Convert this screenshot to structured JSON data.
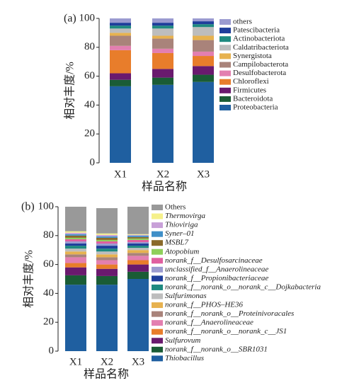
{
  "chart_data": [
    {
      "type": "stacked_bar",
      "panel_label": "(a)",
      "y_label": "相对丰度/%",
      "x_label": "样品名称",
      "categories": [
        "X1",
        "X2",
        "X3"
      ],
      "ylim": [
        0,
        100
      ],
      "yticks": [
        0,
        20,
        40,
        60,
        80,
        100
      ],
      "series": [
        {
          "name": "Proteobacteria",
          "color": "#1f5fa0",
          "values": [
            53,
            54,
            56
          ]
        },
        {
          "name": "Bacteroidota",
          "color": "#1a5c35",
          "values": [
            4.5,
            5,
            5
          ]
        },
        {
          "name": "Firmicutes",
          "color": "#6a1a6e",
          "values": [
            4.5,
            6,
            6
          ]
        },
        {
          "name": "Chloroflexi",
          "color": "#e87d2b",
          "values": [
            16,
            11,
            7
          ]
        },
        {
          "name": "Desulfobacterota",
          "color": "#e37fb0",
          "values": [
            3,
            3,
            3
          ]
        },
        {
          "name": "Campilobacterota",
          "color": "#a9837a",
          "values": [
            7,
            7,
            8
          ]
        },
        {
          "name": "Synergistota",
          "color": "#e7b24f",
          "values": [
            2,
            2,
            3
          ]
        },
        {
          "name": "Caldatribacteriota",
          "color": "#bdbdbd",
          "values": [
            3,
            5,
            6
          ]
        },
        {
          "name": "Actinobacteriota",
          "color": "#1f8a80",
          "values": [
            2,
            2,
            2
          ]
        },
        {
          "name": "Patescibacteria",
          "color": "#1f3e9b",
          "values": [
            2,
            2,
            2
          ]
        },
        {
          "name": "others",
          "color": "#9b9bd0",
          "values": [
            3,
            3,
            2
          ]
        }
      ]
    },
    {
      "type": "stacked_bar",
      "panel_label": "(b)",
      "y_label": "相对丰度/%",
      "x_label": "样品名称",
      "categories": [
        "X1",
        "X2",
        "X3"
      ],
      "ylim": [
        0,
        100
      ],
      "yticks": [
        0,
        20,
        40,
        60,
        80,
        100
      ],
      "series": [
        {
          "name": "Thiobacillus",
          "color": "#1f5fa0",
          "italic": true,
          "values": [
            46,
            46,
            50
          ]
        },
        {
          "name": "norank_f__norank_o__SBR1031",
          "color": "#1a5c35",
          "italic": true,
          "values": [
            6.5,
            6,
            5
          ]
        },
        {
          "name": "Sulfurovum",
          "color": "#6a1a6e",
          "italic": true,
          "values": [
            5.5,
            5,
            5
          ]
        },
        {
          "name": "norank_f__norank_o__norank_c__JS1",
          "color": "#e87d2b",
          "italic": true,
          "values": [
            3,
            3,
            3
          ]
        },
        {
          "name": "norank_f__Anaerolineaceae",
          "color": "#e37fb0",
          "italic": true,
          "values": [
            4,
            3,
            3
          ]
        },
        {
          "name": "norank_f__norank_o__Proteinivoracales",
          "color": "#a9837a",
          "italic": true,
          "values": [
            2,
            2,
            2
          ]
        },
        {
          "name": "norank_f__PHOS–HE36",
          "color": "#e7b24f",
          "italic": true,
          "values": [
            2,
            2,
            2
          ]
        },
        {
          "name": "Sulfurimonas",
          "color": "#bdbdbd",
          "italic": true,
          "values": [
            2,
            2,
            1.5
          ]
        },
        {
          "name": "norank_f__norank_o__norank_c__Dojkabacteria",
          "color": "#1f8a80",
          "italic": true,
          "values": [
            2,
            2,
            1.5
          ]
        },
        {
          "name": "norank_f__Propionibacteriaceae",
          "color": "#1f3e9b",
          "italic": true,
          "values": [
            1.5,
            2,
            1.5
          ]
        },
        {
          "name": "unclassified_f__Anaerolineaceae",
          "color": "#9b9bd0",
          "italic": true,
          "values": [
            1.5,
            1.5,
            1
          ]
        },
        {
          "name": "norank_f__Desulfosarcinaceae",
          "color": "#e05fa0",
          "italic": true,
          "values": [
            1.5,
            1.5,
            1.5
          ]
        },
        {
          "name": "Atopobium",
          "color": "#8fcf5a",
          "italic": true,
          "values": [
            1,
            1,
            1
          ]
        },
        {
          "name": "MSBL7",
          "color": "#8a6a2a",
          "italic": true,
          "values": [
            1.5,
            1.5,
            1
          ]
        },
        {
          "name": "Syner–01",
          "color": "#3f8fc8",
          "italic": true,
          "values": [
            1,
            1,
            1
          ]
        },
        {
          "name": "Thioviriga",
          "color": "#c8a0d8",
          "italic": true,
          "values": [
            1,
            1,
            0.5
          ]
        },
        {
          "name": "Thermovirga",
          "color": "#f5f08a",
          "italic": true,
          "values": [
            1,
            1,
            0.5
          ]
        },
        {
          "name": "Others",
          "color": "#999999",
          "values": [
            17,
            17.5,
            19
          ]
        }
      ]
    }
  ]
}
